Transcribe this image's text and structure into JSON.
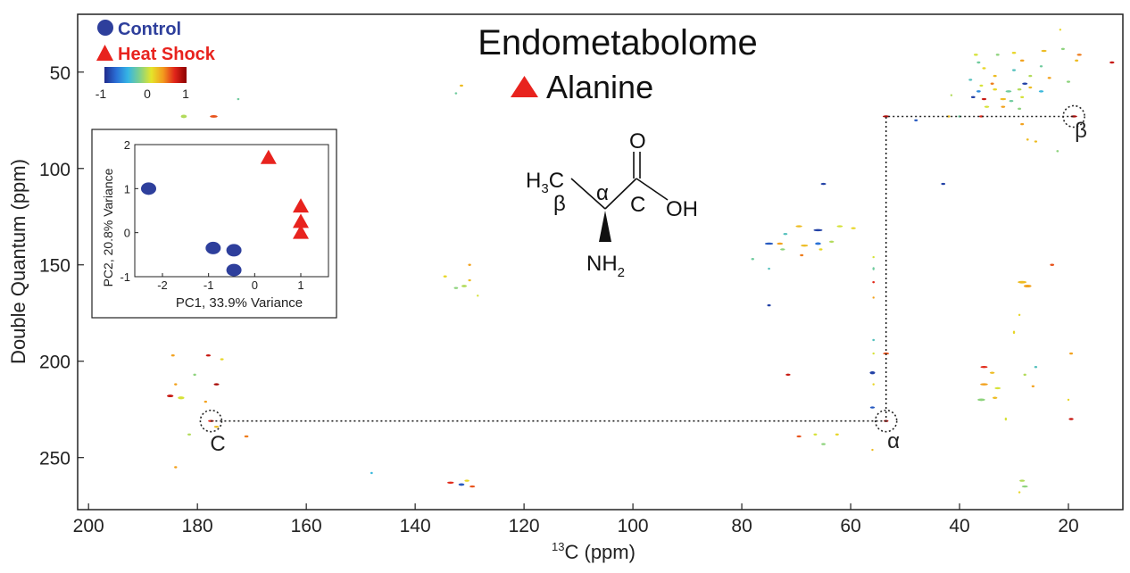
{
  "chart_data": {
    "type": "scatter",
    "title": "Endometabolome",
    "metabolite": "Alanine",
    "xlabel_sup": "13",
    "xlabel_main": "C (ppm)",
    "ylabel": "Double Quantum (ppm)",
    "xlim": [
      202,
      10
    ],
    "ylim": [
      20,
      277
    ],
    "xticks": [
      200,
      180,
      160,
      140,
      120,
      100,
      80,
      60,
      40,
      20
    ],
    "yticks": [
      50,
      100,
      150,
      200,
      250
    ],
    "grid": false,
    "legend": {
      "placement": "top-left",
      "items": [
        {
          "label": "Control",
          "marker": "circle",
          "color": "#2E3F9C"
        },
        {
          "label": "Heat Shock",
          "marker": "triangle",
          "color": "#E8231E"
        }
      ]
    },
    "colorbar": {
      "ticks": [
        "-1",
        "0",
        "1"
      ],
      "colors": [
        "#1f2a8c",
        "#2a6fd6",
        "#35b5e5",
        "#7fd08c",
        "#e5e52a",
        "#f39a1e",
        "#e0241a",
        "#8c0000"
      ]
    },
    "structure": {
      "o_label": "O",
      "oh_label": "OH",
      "c_label": "C",
      "alpha_label": "α",
      "h3c_main": "H",
      "h3c_sub": "3",
      "h3c_c": "C",
      "beta_label": "β",
      "nh_main": "NH",
      "nh_sub": "2"
    },
    "annotations": [
      {
        "label": "C",
        "x": 177.5,
        "y": 231
      },
      {
        "label": "α",
        "x": 53.5,
        "y": 231
      },
      {
        "label": "β",
        "x": 19.0,
        "y": 73
      }
    ],
    "correlation_path": [
      [
        177.5,
        231
      ],
      [
        53.5,
        231
      ],
      [
        53.5,
        73
      ],
      [
        19.0,
        73
      ]
    ],
    "peaks": [
      {
        "x": 182.5,
        "y": 73,
        "w": 1.0,
        "h": 1.6,
        "c": 0.0
      },
      {
        "x": 177.0,
        "y": 73,
        "w": 1.3,
        "h": 1.2,
        "c": 0.6
      },
      {
        "x": 172.5,
        "y": 64,
        "w": 0.4,
        "h": 0.6,
        "c": -0.2
      },
      {
        "x": 178.0,
        "y": 197,
        "w": 0.8,
        "h": 1.0,
        "c": 0.8
      },
      {
        "x": 175.5,
        "y": 199,
        "w": 0.6,
        "h": 0.6,
        "c": 0.2
      },
      {
        "x": 184.5,
        "y": 197,
        "w": 0.6,
        "h": 0.8,
        "c": 0.4
      },
      {
        "x": 180.5,
        "y": 207,
        "w": 0.5,
        "h": 0.6,
        "c": -0.1
      },
      {
        "x": 184.0,
        "y": 212,
        "w": 0.5,
        "h": 0.6,
        "c": 0.4
      },
      {
        "x": 176.5,
        "y": 212,
        "w": 0.9,
        "h": 1.0,
        "c": 0.9
      },
      {
        "x": 185.0,
        "y": 218,
        "w": 1.1,
        "h": 1.2,
        "c": 0.8
      },
      {
        "x": 183.0,
        "y": 219,
        "w": 1.1,
        "h": 1.4,
        "c": 0.1
      },
      {
        "x": 178.5,
        "y": 221,
        "w": 0.5,
        "h": 0.6,
        "c": 0.4
      },
      {
        "x": 177.5,
        "y": 231,
        "w": 1.0,
        "h": 0.9,
        "c": 0.7
      },
      {
        "x": 176.5,
        "y": 234,
        "w": 0.8,
        "h": 0.8,
        "c": 0.3
      },
      {
        "x": 181.5,
        "y": 238,
        "w": 0.6,
        "h": 0.6,
        "c": 0.0
      },
      {
        "x": 171.0,
        "y": 239,
        "w": 0.7,
        "h": 0.6,
        "c": 0.5
      },
      {
        "x": 184.0,
        "y": 255,
        "w": 0.5,
        "h": 0.6,
        "c": 0.4
      },
      {
        "x": 131.5,
        "y": 57,
        "w": 0.6,
        "h": 0.8,
        "c": 0.3
      },
      {
        "x": 132.5,
        "y": 61,
        "w": 0.4,
        "h": 0.5,
        "c": -0.2
      },
      {
        "x": 130.0,
        "y": 150,
        "w": 0.5,
        "h": 0.6,
        "c": 0.4
      },
      {
        "x": 134.5,
        "y": 156,
        "w": 0.6,
        "h": 0.6,
        "c": 0.2
      },
      {
        "x": 130.0,
        "y": 158,
        "w": 0.5,
        "h": 0.6,
        "c": 0.3
      },
      {
        "x": 131.0,
        "y": 161,
        "w": 0.9,
        "h": 1.2,
        "c": 0.0
      },
      {
        "x": 132.5,
        "y": 162,
        "w": 0.7,
        "h": 1.0,
        "c": -0.1
      },
      {
        "x": 128.5,
        "y": 166,
        "w": 0.3,
        "h": 0.4,
        "c": 0.1
      },
      {
        "x": 133.5,
        "y": 263,
        "w": 1.1,
        "h": 0.8,
        "c": 0.7
      },
      {
        "x": 131.5,
        "y": 264,
        "w": 1.0,
        "h": 1.2,
        "c": -0.8
      },
      {
        "x": 130.5,
        "y": 262,
        "w": 0.8,
        "h": 0.8,
        "c": 0.2
      },
      {
        "x": 129.5,
        "y": 265,
        "w": 0.9,
        "h": 0.8,
        "c": 0.6
      },
      {
        "x": 148.0,
        "y": 258,
        "w": 0.4,
        "h": 0.3,
        "c": -0.4
      },
      {
        "x": 65.0,
        "y": 108,
        "w": 0.9,
        "h": 0.8,
        "c": -0.9
      },
      {
        "x": 69.5,
        "y": 130,
        "w": 1.1,
        "h": 1.0,
        "c": 0.3
      },
      {
        "x": 66.0,
        "y": 132,
        "w": 1.5,
        "h": 1.0,
        "c": -0.9
      },
      {
        "x": 62.0,
        "y": 130,
        "w": 1.0,
        "h": 0.8,
        "c": 0.1
      },
      {
        "x": 59.5,
        "y": 131,
        "w": 0.8,
        "h": 0.6,
        "c": 0.2
      },
      {
        "x": 72.0,
        "y": 134,
        "w": 0.7,
        "h": 0.8,
        "c": -0.3
      },
      {
        "x": 75.0,
        "y": 139,
        "w": 1.4,
        "h": 1.0,
        "c": -0.8
      },
      {
        "x": 73.0,
        "y": 139,
        "w": 1.0,
        "h": 1.0,
        "c": 0.4
      },
      {
        "x": 72.5,
        "y": 142,
        "w": 0.8,
        "h": 0.8,
        "c": -0.1
      },
      {
        "x": 68.5,
        "y": 140,
        "w": 1.2,
        "h": 1.0,
        "c": 0.3
      },
      {
        "x": 66.0,
        "y": 139,
        "w": 1.0,
        "h": 1.2,
        "c": -0.7
      },
      {
        "x": 63.5,
        "y": 138,
        "w": 0.8,
        "h": 0.8,
        "c": 0.0
      },
      {
        "x": 69.0,
        "y": 145,
        "w": 0.6,
        "h": 0.6,
        "c": 0.5
      },
      {
        "x": 65.5,
        "y": 142,
        "w": 0.6,
        "h": 0.6,
        "c": 0.2
      },
      {
        "x": 78.0,
        "y": 147,
        "w": 0.5,
        "h": 0.4,
        "c": -0.2
      },
      {
        "x": 75.0,
        "y": 152,
        "w": 0.4,
        "h": 0.5,
        "c": -0.3
      },
      {
        "x": 75.0,
        "y": 171,
        "w": 0.6,
        "h": 0.8,
        "c": -0.9
      },
      {
        "x": 55.8,
        "y": 146,
        "w": 0.3,
        "h": 1.0,
        "c": 0.1
      },
      {
        "x": 55.8,
        "y": 152,
        "w": 0.3,
        "h": 1.5,
        "c": -0.2
      },
      {
        "x": 55.8,
        "y": 159,
        "w": 0.4,
        "h": 0.8,
        "c": 0.7
      },
      {
        "x": 55.8,
        "y": 167,
        "w": 0.3,
        "h": 1.0,
        "c": 0.4
      },
      {
        "x": 55.8,
        "y": 189,
        "w": 0.4,
        "h": 0.6,
        "c": -0.3
      },
      {
        "x": 55.8,
        "y": 196,
        "w": 0.3,
        "h": 0.6,
        "c": 0.1
      },
      {
        "x": 56.0,
        "y": 206,
        "w": 0.9,
        "h": 1.4,
        "c": -0.9
      },
      {
        "x": 55.8,
        "y": 212,
        "w": 0.3,
        "h": 0.6,
        "c": 0.2
      },
      {
        "x": 56.0,
        "y": 224,
        "w": 0.8,
        "h": 0.7,
        "c": -0.8
      },
      {
        "x": 53.5,
        "y": 196,
        "w": 1.0,
        "h": 1.0,
        "c": 0.6
      },
      {
        "x": 53.5,
        "y": 231,
        "w": 0.8,
        "h": 0.7,
        "c": 0.9
      },
      {
        "x": 71.5,
        "y": 207,
        "w": 0.8,
        "h": 0.6,
        "c": 0.8
      },
      {
        "x": 69.5,
        "y": 239,
        "w": 0.8,
        "h": 0.6,
        "c": 0.6
      },
      {
        "x": 66.5,
        "y": 238,
        "w": 0.6,
        "h": 0.6,
        "c": 0.1
      },
      {
        "x": 65.0,
        "y": 243,
        "w": 0.7,
        "h": 0.6,
        "c": -0.1
      },
      {
        "x": 62.5,
        "y": 238,
        "w": 0.6,
        "h": 0.6,
        "c": 0.2
      },
      {
        "x": 56.0,
        "y": 246,
        "w": 0.3,
        "h": 0.4,
        "c": 0.3
      },
      {
        "x": 53.5,
        "y": 73,
        "w": 1.1,
        "h": 0.7,
        "c": 0.9
      },
      {
        "x": 48.0,
        "y": 75,
        "w": 0.6,
        "h": 0.6,
        "c": -0.8
      },
      {
        "x": 43.0,
        "y": 108,
        "w": 0.7,
        "h": 0.5,
        "c": -0.9
      },
      {
        "x": 40.0,
        "y": 73,
        "w": 0.5,
        "h": 0.4,
        "c": -0.2
      },
      {
        "x": 42.0,
        "y": 73,
        "w": 0.5,
        "h": 0.4,
        "c": 0.3
      },
      {
        "x": 36.0,
        "y": 73,
        "w": 0.8,
        "h": 0.4,
        "c": 0.7
      },
      {
        "x": 19.0,
        "y": 73,
        "w": 1.1,
        "h": 0.7,
        "c": 0.9
      },
      {
        "x": 22.0,
        "y": 91,
        "w": 0.4,
        "h": 0.4,
        "c": -0.1
      },
      {
        "x": 26.0,
        "y": 86,
        "w": 0.5,
        "h": 0.5,
        "c": 0.3
      },
      {
        "x": 28.5,
        "y": 77,
        "w": 0.6,
        "h": 0.8,
        "c": 0.4
      },
      {
        "x": 21.0,
        "y": 38,
        "w": 0.6,
        "h": 0.5,
        "c": -0.1
      },
      {
        "x": 21.5,
        "y": 28,
        "w": 0.3,
        "h": 0.3,
        "c": 0.2
      },
      {
        "x": 18.0,
        "y": 41,
        "w": 0.8,
        "h": 0.7,
        "c": 0.5
      },
      {
        "x": 18.5,
        "y": 44,
        "w": 0.6,
        "h": 0.6,
        "c": 0.3
      },
      {
        "x": 12.0,
        "y": 45,
        "w": 0.8,
        "h": 0.6,
        "c": 0.8
      },
      {
        "x": 24.5,
        "y": 39,
        "w": 0.9,
        "h": 0.7,
        "c": 0.3
      },
      {
        "x": 30.0,
        "y": 40,
        "w": 0.7,
        "h": 0.6,
        "c": 0.2
      },
      {
        "x": 33.0,
        "y": 41,
        "w": 0.6,
        "h": 0.5,
        "c": -0.1
      },
      {
        "x": 37.0,
        "y": 41,
        "w": 0.7,
        "h": 0.6,
        "c": 0.1
      },
      {
        "x": 28.5,
        "y": 44,
        "w": 0.7,
        "h": 0.6,
        "c": 0.4
      },
      {
        "x": 25.0,
        "y": 47,
        "w": 0.5,
        "h": 0.5,
        "c": -0.2
      },
      {
        "x": 30.0,
        "y": 49,
        "w": 0.6,
        "h": 0.5,
        "c": -0.3
      },
      {
        "x": 35.5,
        "y": 48,
        "w": 0.6,
        "h": 0.6,
        "c": 0.2
      },
      {
        "x": 36.5,
        "y": 45,
        "w": 0.6,
        "h": 0.6,
        "c": -0.2
      },
      {
        "x": 33.5,
        "y": 52,
        "w": 0.6,
        "h": 0.6,
        "c": 0.3
      },
      {
        "x": 27.0,
        "y": 52,
        "w": 0.6,
        "h": 0.6,
        "c": 0.0
      },
      {
        "x": 23.5,
        "y": 53,
        "w": 0.6,
        "h": 0.6,
        "c": 0.4
      },
      {
        "x": 20.0,
        "y": 55,
        "w": 0.6,
        "h": 0.5,
        "c": -0.1
      },
      {
        "x": 28.0,
        "y": 56,
        "w": 0.9,
        "h": 0.6,
        "c": -0.9
      },
      {
        "x": 34.0,
        "y": 56,
        "w": 0.6,
        "h": 0.6,
        "c": 0.5
      },
      {
        "x": 36.0,
        "y": 57,
        "w": 0.6,
        "h": 0.6,
        "c": 0.1
      },
      {
        "x": 38.0,
        "y": 54,
        "w": 0.6,
        "h": 0.6,
        "c": -0.3
      },
      {
        "x": 36.5,
        "y": 60,
        "w": 0.7,
        "h": 0.7,
        "c": -0.6
      },
      {
        "x": 33.5,
        "y": 59,
        "w": 0.7,
        "h": 0.7,
        "c": 0.2
      },
      {
        "x": 31.0,
        "y": 60,
        "w": 1.0,
        "h": 0.8,
        "c": -0.2
      },
      {
        "x": 29.0,
        "y": 59,
        "w": 0.7,
        "h": 0.6,
        "c": 0.0
      },
      {
        "x": 27.0,
        "y": 58,
        "w": 0.6,
        "h": 0.6,
        "c": 0.3
      },
      {
        "x": 25.0,
        "y": 60,
        "w": 0.8,
        "h": 0.6,
        "c": -0.4
      },
      {
        "x": 37.5,
        "y": 63,
        "w": 0.7,
        "h": 0.7,
        "c": -0.9
      },
      {
        "x": 35.5,
        "y": 64,
        "w": 0.8,
        "h": 0.7,
        "c": 0.8
      },
      {
        "x": 32.0,
        "y": 64,
        "w": 1.0,
        "h": 0.8,
        "c": 0.3
      },
      {
        "x": 30.5,
        "y": 65,
        "w": 0.7,
        "h": 0.7,
        "c": -0.2
      },
      {
        "x": 28.5,
        "y": 63,
        "w": 0.6,
        "h": 0.6,
        "c": 0.1
      },
      {
        "x": 35.0,
        "y": 68,
        "w": 0.8,
        "h": 0.8,
        "c": 0.1
      },
      {
        "x": 32.0,
        "y": 68,
        "w": 0.7,
        "h": 0.7,
        "c": 0.4
      },
      {
        "x": 29.0,
        "y": 69,
        "w": 0.6,
        "h": 0.6,
        "c": -0.1
      },
      {
        "x": 41.5,
        "y": 62,
        "w": 0.3,
        "h": 0.3,
        "c": 0.0
      },
      {
        "x": 27.5,
        "y": 85,
        "w": 0.4,
        "h": 0.5,
        "c": 0.3
      },
      {
        "x": 28.5,
        "y": 159,
        "w": 1.5,
        "h": 1.2,
        "c": 0.3
      },
      {
        "x": 27.5,
        "y": 161,
        "w": 1.3,
        "h": 1.3,
        "c": 0.4
      },
      {
        "x": 23.0,
        "y": 150,
        "w": 0.7,
        "h": 0.6,
        "c": 0.6
      },
      {
        "x": 29.0,
        "y": 176,
        "w": 0.3,
        "h": 0.8,
        "c": 0.2
      },
      {
        "x": 30.0,
        "y": 185,
        "w": 0.3,
        "h": 1.5,
        "c": 0.2
      },
      {
        "x": 35.5,
        "y": 203,
        "w": 1.2,
        "h": 1.0,
        "c": 0.7
      },
      {
        "x": 34.0,
        "y": 206,
        "w": 0.8,
        "h": 0.8,
        "c": 0.3
      },
      {
        "x": 35.5,
        "y": 212,
        "w": 1.3,
        "h": 1.1,
        "c": 0.4
      },
      {
        "x": 33.0,
        "y": 214,
        "w": 1.0,
        "h": 1.0,
        "c": 0.1
      },
      {
        "x": 36.0,
        "y": 220,
        "w": 1.3,
        "h": 1.2,
        "c": -0.1
      },
      {
        "x": 33.5,
        "y": 219,
        "w": 0.8,
        "h": 0.8,
        "c": 0.3
      },
      {
        "x": 28.0,
        "y": 207,
        "w": 0.5,
        "h": 0.5,
        "c": 0.0
      },
      {
        "x": 26.0,
        "y": 203,
        "w": 0.5,
        "h": 0.5,
        "c": -0.3
      },
      {
        "x": 26.5,
        "y": 213,
        "w": 0.5,
        "h": 0.6,
        "c": 0.4
      },
      {
        "x": 19.5,
        "y": 196,
        "w": 0.6,
        "h": 0.5,
        "c": 0.4
      },
      {
        "x": 19.5,
        "y": 230,
        "w": 0.8,
        "h": 0.6,
        "c": 0.8
      },
      {
        "x": 28.5,
        "y": 262,
        "w": 0.9,
        "h": 0.8,
        "c": 0.0
      },
      {
        "x": 28.0,
        "y": 265,
        "w": 1.0,
        "h": 0.8,
        "c": -0.1
      },
      {
        "x": 29.0,
        "y": 268,
        "w": 0.3,
        "h": 0.3,
        "c": 0.2
      },
      {
        "x": 31.5,
        "y": 230,
        "w": 0.2,
        "h": 1.5,
        "c": 0.1
      },
      {
        "x": 20.0,
        "y": 220,
        "w": 0.3,
        "h": 0.3,
        "c": 0.2
      }
    ],
    "pca_inset": {
      "type": "scatter",
      "xlabel": "PC1, 33.9% Variance",
      "ylabel": "PC2, 20.8% Variance",
      "xlim": [
        -2.6,
        1.6
      ],
      "ylim": [
        -1,
        2
      ],
      "xticks": [
        -2,
        -1,
        0,
        1
      ],
      "yticks": [
        -1,
        0,
        1,
        2
      ],
      "series": [
        {
          "name": "Control",
          "marker": "circle",
          "color": "#2E3F9C",
          "points": [
            [
              -2.3,
              1.0
            ],
            [
              -0.9,
              -0.35
            ],
            [
              -0.45,
              -0.4
            ],
            [
              -0.45,
              -0.85
            ]
          ]
        },
        {
          "name": "Heat Shock",
          "marker": "triangle",
          "color": "#E8231E",
          "points": [
            [
              0.3,
              1.7
            ],
            [
              1.0,
              0.6
            ],
            [
              1.0,
              0.25
            ],
            [
              1.0,
              0.0
            ]
          ]
        }
      ]
    }
  }
}
